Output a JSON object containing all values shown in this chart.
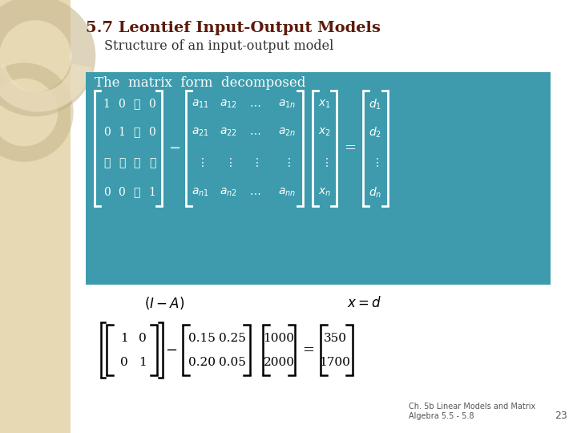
{
  "title": "5.7 Leontief Input-Output Models",
  "subtitle": "Structure of an input-output model",
  "title_color": "#5C1A0A",
  "subtitle_color": "#333333",
  "bg_color": "#FFFFFF",
  "sidebar_color": "#E8D9B5",
  "teal_box_color": "#3D9BAD",
  "teal_text_color": "#FFFFFF",
  "footer_text": "Ch. 5b Linear Models and Matrix\nAlgebra 5.5 - 5.8",
  "footer_page": "23",
  "footer_color": "#555555"
}
